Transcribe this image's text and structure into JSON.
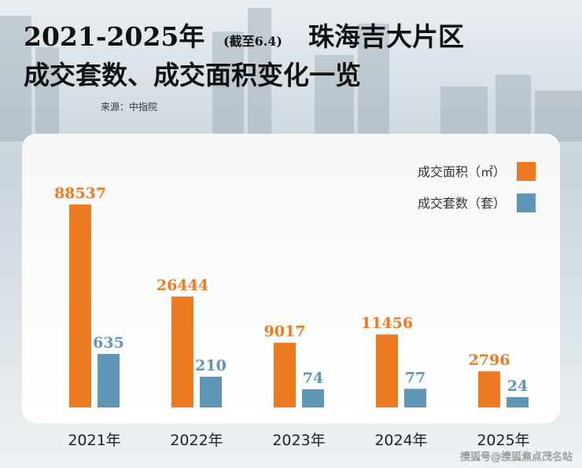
{
  "chart_data": {
    "type": "bar",
    "title_parts": [
      "2021-2025年",
      "(截至6.4)",
      "珠海吉大片区",
      "成交套数、成交面积变化一览"
    ],
    "source": "来源：中指院",
    "categories": [
      "2021年",
      "2022年",
      "2023年",
      "2024年",
      "2025年"
    ],
    "series": [
      {
        "name": "成交面积（㎡）",
        "color": "#ee7a22",
        "values": [
          88537,
          26444,
          9017,
          11456,
          2796
        ]
      },
      {
        "name": "成交套数（套）",
        "color": "#5f95b5",
        "values": [
          635,
          210,
          74,
          77,
          24
        ]
      }
    ],
    "legend": "upper right",
    "watermark": "搜狐号@搜狐焦点茂名站"
  }
}
